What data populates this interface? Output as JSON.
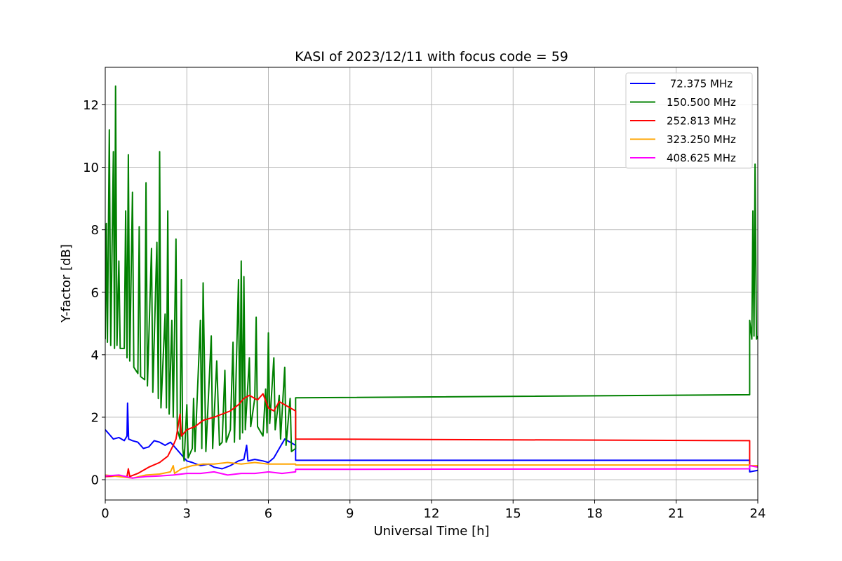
{
  "chart_data": {
    "type": "line",
    "title": "KASI of 2023/12/11 with focus code = 59",
    "xlabel": "Universal Time [h]",
    "ylabel": "Y-factor [dB]",
    "xlim": [
      0,
      24
    ],
    "ylim": [
      -0.65,
      13.2
    ],
    "xticks": [
      0,
      3,
      6,
      9,
      12,
      15,
      18,
      21,
      24
    ],
    "yticks": [
      0,
      2,
      4,
      6,
      8,
      10,
      12
    ],
    "grid": true,
    "legend_position": "top-right",
    "series": [
      {
        "name": " 72.375 MHz",
        "color": "#0000ff",
        "points": [
          [
            0.0,
            1.6
          ],
          [
            0.15,
            1.45
          ],
          [
            0.3,
            1.3
          ],
          [
            0.5,
            1.35
          ],
          [
            0.7,
            1.25
          ],
          [
            0.8,
            1.4
          ],
          [
            0.82,
            2.45
          ],
          [
            0.86,
            1.3
          ],
          [
            1.0,
            1.25
          ],
          [
            1.2,
            1.2
          ],
          [
            1.4,
            1.0
          ],
          [
            1.6,
            1.05
          ],
          [
            1.8,
            1.25
          ],
          [
            2.0,
            1.2
          ],
          [
            2.2,
            1.1
          ],
          [
            2.4,
            1.2
          ],
          [
            2.6,
            1.0
          ],
          [
            2.8,
            0.8
          ],
          [
            3.0,
            0.6
          ],
          [
            3.2,
            0.55
          ],
          [
            3.5,
            0.45
          ],
          [
            3.8,
            0.5
          ],
          [
            4.0,
            0.4
          ],
          [
            4.3,
            0.35
          ],
          [
            4.6,
            0.45
          ],
          [
            4.9,
            0.6
          ],
          [
            5.1,
            0.65
          ],
          [
            5.2,
            1.1
          ],
          [
            5.25,
            0.6
          ],
          [
            5.5,
            0.65
          ],
          [
            5.8,
            0.6
          ],
          [
            6.0,
            0.55
          ],
          [
            6.2,
            0.7
          ],
          [
            6.4,
            1.0
          ],
          [
            6.6,
            1.3
          ],
          [
            6.8,
            1.2
          ],
          [
            7.0,
            1.1
          ],
          [
            7.0,
            0.62
          ],
          [
            23.7,
            0.62
          ],
          [
            23.7,
            0.25
          ],
          [
            24.0,
            0.3
          ]
        ]
      },
      {
        "name": "150.500 MHz",
        "color": "#008000",
        "points": [
          [
            0.0,
            4.5
          ],
          [
            0.04,
            8.2
          ],
          [
            0.08,
            4.4
          ],
          [
            0.15,
            11.2
          ],
          [
            0.2,
            4.3
          ],
          [
            0.3,
            10.5
          ],
          [
            0.34,
            4.2
          ],
          [
            0.38,
            12.6
          ],
          [
            0.43,
            4.3
          ],
          [
            0.5,
            7.0
          ],
          [
            0.55,
            4.2
          ],
          [
            0.7,
            4.2
          ],
          [
            0.75,
            8.6
          ],
          [
            0.8,
            3.9
          ],
          [
            0.85,
            10.4
          ],
          [
            0.9,
            3.8
          ],
          [
            1.0,
            9.2
          ],
          [
            1.05,
            3.6
          ],
          [
            1.2,
            3.4
          ],
          [
            1.25,
            8.1
          ],
          [
            1.3,
            3.3
          ],
          [
            1.45,
            3.2
          ],
          [
            1.5,
            9.5
          ],
          [
            1.55,
            3.0
          ],
          [
            1.7,
            7.4
          ],
          [
            1.75,
            2.8
          ],
          [
            1.9,
            7.6
          ],
          [
            1.95,
            2.6
          ],
          [
            2.0,
            10.5
          ],
          [
            2.05,
            2.3
          ],
          [
            2.2,
            5.3
          ],
          [
            2.25,
            2.3
          ],
          [
            2.3,
            8.6
          ],
          [
            2.35,
            2.1
          ],
          [
            2.45,
            5.1
          ],
          [
            2.5,
            2.0
          ],
          [
            2.6,
            7.7
          ],
          [
            2.65,
            1.6
          ],
          [
            2.75,
            1.3
          ],
          [
            2.8,
            6.4
          ],
          [
            2.85,
            1.0
          ],
          [
            2.9,
            0.6
          ],
          [
            3.0,
            2.4
          ],
          [
            3.05,
            0.7
          ],
          [
            3.2,
            1.0
          ],
          [
            3.25,
            2.6
          ],
          [
            3.3,
            0.9
          ],
          [
            3.5,
            5.1
          ],
          [
            3.55,
            1.0
          ],
          [
            3.6,
            6.3
          ],
          [
            3.7,
            0.9
          ],
          [
            3.9,
            4.6
          ],
          [
            3.95,
            1.0
          ],
          [
            4.1,
            3.8
          ],
          [
            4.2,
            1.1
          ],
          [
            4.3,
            1.2
          ],
          [
            4.4,
            3.5
          ],
          [
            4.45,
            1.2
          ],
          [
            4.6,
            1.6
          ],
          [
            4.7,
            4.4
          ],
          [
            4.75,
            1.2
          ],
          [
            4.9,
            6.4
          ],
          [
            4.95,
            1.3
          ],
          [
            5.0,
            7.0
          ],
          [
            5.05,
            1.5
          ],
          [
            5.1,
            6.5
          ],
          [
            5.15,
            1.6
          ],
          [
            5.3,
            3.9
          ],
          [
            5.35,
            1.7
          ],
          [
            5.5,
            2.6
          ],
          [
            5.55,
            5.2
          ],
          [
            5.6,
            1.7
          ],
          [
            5.8,
            1.4
          ],
          [
            5.9,
            2.9
          ],
          [
            5.95,
            1.5
          ],
          [
            6.0,
            4.7
          ],
          [
            6.05,
            1.8
          ],
          [
            6.2,
            3.9
          ],
          [
            6.25,
            1.6
          ],
          [
            6.4,
            2.7
          ],
          [
            6.45,
            1.3
          ],
          [
            6.6,
            3.6
          ],
          [
            6.65,
            1.1
          ],
          [
            6.8,
            2.6
          ],
          [
            6.85,
            0.9
          ],
          [
            7.0,
            1.0
          ],
          [
            7.0,
            2.62
          ],
          [
            23.7,
            2.72
          ],
          [
            23.7,
            5.1
          ],
          [
            23.78,
            4.5
          ],
          [
            23.82,
            8.6
          ],
          [
            23.86,
            4.6
          ],
          [
            23.9,
            10.1
          ],
          [
            23.95,
            4.5
          ],
          [
            24.0,
            4.6
          ]
        ]
      },
      {
        "name": "252.813 MHz",
        "color": "#ff0000",
        "points": [
          [
            0.0,
            0.1
          ],
          [
            0.5,
            0.12
          ],
          [
            0.8,
            0.1
          ],
          [
            0.85,
            0.35
          ],
          [
            0.9,
            0.1
          ],
          [
            1.2,
            0.2
          ],
          [
            1.6,
            0.4
          ],
          [
            2.0,
            0.55
          ],
          [
            2.3,
            0.75
          ],
          [
            2.5,
            1.1
          ],
          [
            2.6,
            1.3
          ],
          [
            2.75,
            2.1
          ],
          [
            2.8,
            1.4
          ],
          [
            3.0,
            1.6
          ],
          [
            3.3,
            1.7
          ],
          [
            3.6,
            1.9
          ],
          [
            4.0,
            2.0
          ],
          [
            4.3,
            2.1
          ],
          [
            4.6,
            2.2
          ],
          [
            4.9,
            2.4
          ],
          [
            5.1,
            2.6
          ],
          [
            5.3,
            2.7
          ],
          [
            5.6,
            2.55
          ],
          [
            5.8,
            2.75
          ],
          [
            6.0,
            2.3
          ],
          [
            6.2,
            2.2
          ],
          [
            6.4,
            2.5
          ],
          [
            6.6,
            2.4
          ],
          [
            6.8,
            2.3
          ],
          [
            7.0,
            2.2
          ],
          [
            7.0,
            1.3
          ],
          [
            23.7,
            1.25
          ],
          [
            23.7,
            0.35
          ]
        ]
      },
      {
        "name": "323.250 MHz",
        "color": "#ffa500",
        "points": [
          [
            0.0,
            0.15
          ],
          [
            0.5,
            0.1
          ],
          [
            1.0,
            0.05
          ],
          [
            1.5,
            0.15
          ],
          [
            2.0,
            0.18
          ],
          [
            2.4,
            0.25
          ],
          [
            2.5,
            0.45
          ],
          [
            2.55,
            0.2
          ],
          [
            2.8,
            0.35
          ],
          [
            3.2,
            0.45
          ],
          [
            3.6,
            0.5
          ],
          [
            4.0,
            0.5
          ],
          [
            4.5,
            0.55
          ],
          [
            5.0,
            0.5
          ],
          [
            5.5,
            0.55
          ],
          [
            6.0,
            0.5
          ],
          [
            6.5,
            0.5
          ],
          [
            7.0,
            0.5
          ],
          [
            7.0,
            0.47
          ],
          [
            23.7,
            0.47
          ],
          [
            23.7,
            0.45
          ],
          [
            24.0,
            0.45
          ]
        ]
      },
      {
        "name": "408.625 MHz",
        "color": "#ff00ff",
        "points": [
          [
            0.0,
            0.12
          ],
          [
            0.5,
            0.15
          ],
          [
            1.0,
            0.05
          ],
          [
            1.5,
            0.1
          ],
          [
            2.0,
            0.12
          ],
          [
            2.5,
            0.15
          ],
          [
            3.0,
            0.2
          ],
          [
            3.5,
            0.2
          ],
          [
            4.0,
            0.25
          ],
          [
            4.5,
            0.15
          ],
          [
            5.0,
            0.2
          ],
          [
            5.5,
            0.2
          ],
          [
            6.0,
            0.25
          ],
          [
            6.5,
            0.2
          ],
          [
            7.0,
            0.25
          ],
          [
            7.0,
            0.33
          ],
          [
            23.7,
            0.35
          ],
          [
            23.7,
            0.45
          ],
          [
            24.0,
            0.4
          ]
        ]
      }
    ]
  }
}
